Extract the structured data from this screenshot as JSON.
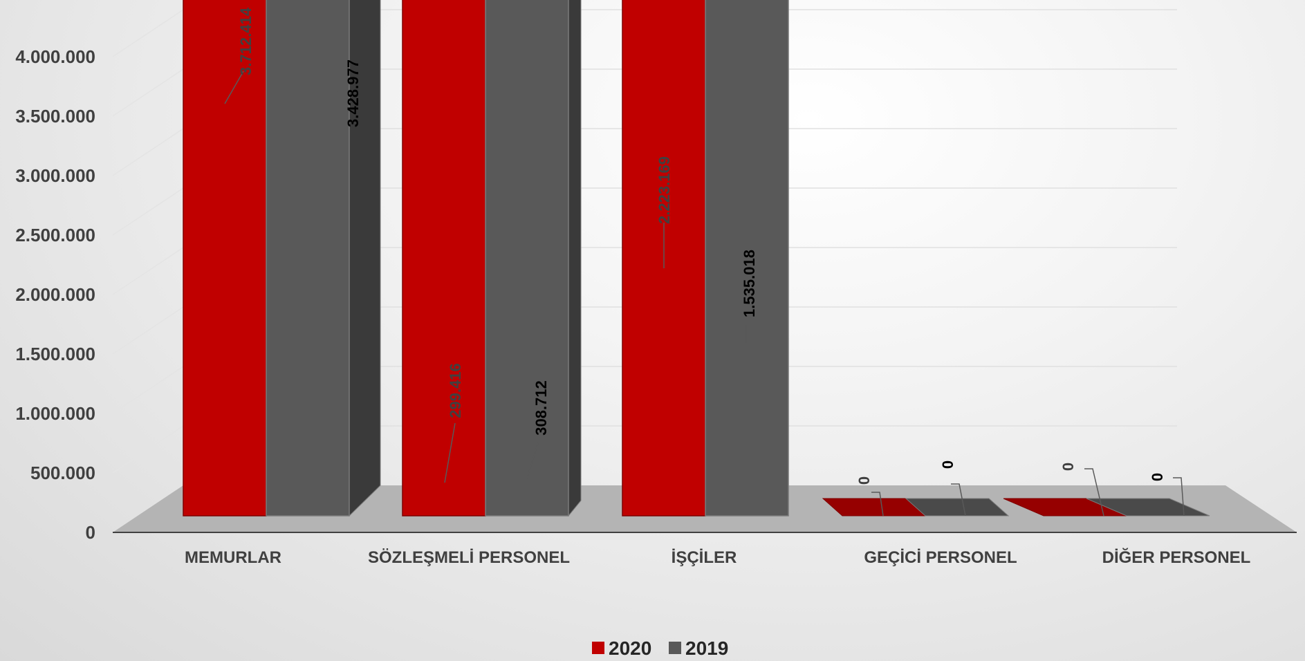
{
  "chart_data": {
    "type": "bar",
    "categories": [
      "MEMURLAR",
      "SÖZLEŞMELİ PERSONEL",
      "İŞÇİLER",
      "GEÇİCİ PERSONEL",
      "DİĞER PERSONEL"
    ],
    "series": [
      {
        "name": "2020",
        "values": [
          3712414,
          299416,
          2223169,
          0,
          0
        ],
        "labels": [
          "3.712.414",
          "299.416",
          "2.223.169",
          "0",
          "0"
        ],
        "color": "#c00000"
      },
      {
        "name": "2019",
        "values": [
          3428977,
          308712,
          1535018,
          0,
          0
        ],
        "labels": [
          "3.428.977",
          "308.712",
          "1.535.018",
          "0",
          "0"
        ],
        "color": "#595959"
      }
    ],
    "ylim": [
      0,
      4000000
    ],
    "yticks": [
      0,
      500000,
      1000000,
      1500000,
      2000000,
      2500000,
      3000000,
      3500000,
      4000000
    ],
    "ytick_labels": [
      "0",
      "500.000",
      "1.000.000",
      "1.500.000",
      "2.000.000",
      "2.500.000",
      "3.000.000",
      "3.500.000",
      "4.000.000"
    ],
    "grid": true,
    "legend": "bottom"
  }
}
